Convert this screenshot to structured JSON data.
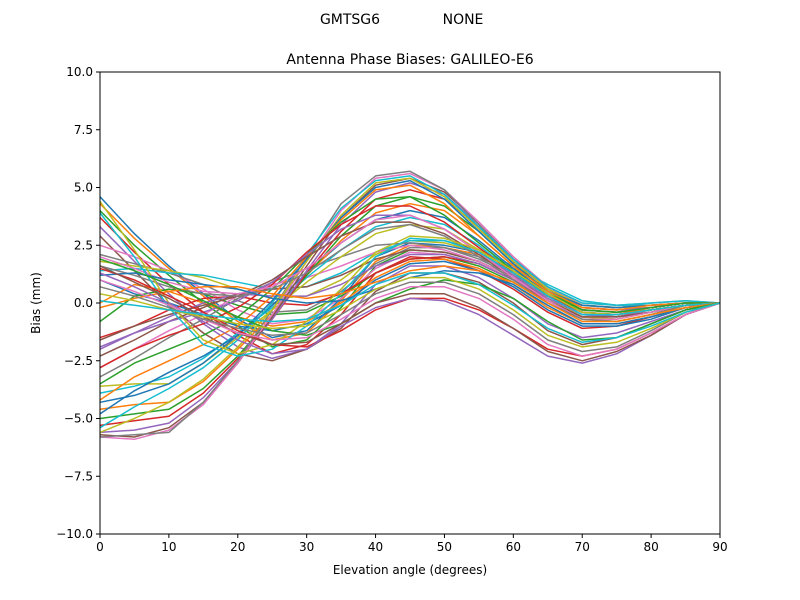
{
  "figure": {
    "suptitle_left": "GMTSG6",
    "suptitle_right": "NONE"
  },
  "chart_data": {
    "type": "line",
    "title": "Antenna Phase Biases: GALILEO-E6",
    "xlabel": "Elevation angle (degrees)",
    "ylabel": "Bias (mm)",
    "xlim": [
      0,
      90
    ],
    "ylim": [
      -10,
      10
    ],
    "x_ticks": [
      "0",
      "10",
      "20",
      "30",
      "40",
      "50",
      "60",
      "70",
      "80",
      "90"
    ],
    "y_ticks": [
      "−10.0",
      "−7.5",
      "−5.0",
      "−2.5",
      "0.0",
      "2.5",
      "5.0",
      "7.5",
      "10.0"
    ],
    "grid": false,
    "legend": "none",
    "x": [
      0,
      5,
      10,
      15,
      20,
      25,
      30,
      35,
      40,
      45,
      50,
      55,
      60,
      65,
      70,
      75,
      80,
      85,
      90
    ],
    "series": [
      {
        "values": [
          4.6,
          3.0,
          1.6,
          0.4,
          -0.7,
          -1.5,
          -1.2,
          0.2,
          2.0,
          2.6,
          2.5,
          2.2,
          1.5,
          0.6,
          -0.1,
          -0.2,
          -0.1,
          0.0,
          0.0
        ]
      },
      {
        "values": [
          4.3,
          2.8,
          1.5,
          0.3,
          -0.8,
          -1.6,
          -1.3,
          0.1,
          1.8,
          2.5,
          2.4,
          2.1,
          1.4,
          0.5,
          -0.2,
          -0.3,
          -0.2,
          0.0,
          0.0
        ]
      },
      {
        "values": [
          4.0,
          2.5,
          1.2,
          0.0,
          -1.0,
          -1.9,
          -1.6,
          -0.2,
          1.6,
          2.3,
          2.2,
          1.8,
          1.1,
          0.2,
          -0.5,
          -0.5,
          -0.3,
          -0.1,
          0.0
        ]
      },
      {
        "values": [
          3.7,
          2.2,
          0.8,
          -0.4,
          -1.4,
          -2.2,
          -1.8,
          -0.5,
          1.3,
          2.0,
          1.9,
          1.4,
          0.6,
          -0.4,
          -1.1,
          -1.0,
          -0.6,
          -0.2,
          0.0
        ]
      },
      {
        "values": [
          3.3,
          1.8,
          0.4,
          -0.9,
          -1.9,
          -2.4,
          -2.0,
          -0.9,
          0.8,
          1.6,
          1.6,
          1.1,
          0.2,
          -0.9,
          -1.5,
          -1.3,
          -0.8,
          -0.3,
          0.0
        ]
      },
      {
        "values": [
          2.9,
          1.4,
          -0.1,
          -1.3,
          -2.2,
          -2.5,
          -2.0,
          -1.1,
          0.5,
          1.3,
          1.3,
          0.9,
          0.0,
          -1.2,
          -1.8,
          -1.5,
          -0.9,
          -0.3,
          0.0
        ]
      },
      {
        "values": [
          2.5,
          2.0,
          1.4,
          0.6,
          -0.3,
          -0.9,
          -0.7,
          0.2,
          1.5,
          2.2,
          2.1,
          1.7,
          1.0,
          0.1,
          -0.6,
          -0.6,
          -0.4,
          -0.1,
          0.0
        ]
      },
      {
        "values": [
          2.1,
          1.7,
          1.3,
          0.8,
          0.1,
          -0.4,
          -0.3,
          0.5,
          1.7,
          2.4,
          2.4,
          2.0,
          1.3,
          0.4,
          -0.3,
          -0.4,
          -0.3,
          -0.1,
          0.0
        ]
      },
      {
        "values": [
          1.8,
          1.6,
          1.4,
          1.1,
          0.6,
          0.2,
          0.3,
          1.0,
          2.1,
          2.7,
          2.6,
          2.2,
          1.5,
          0.6,
          -0.1,
          -0.2,
          -0.1,
          0.0,
          0.0
        ]
      },
      {
        "values": [
          1.4,
          1.5,
          1.3,
          1.2,
          0.9,
          0.6,
          0.7,
          1.3,
          2.2,
          2.7,
          2.7,
          2.3,
          1.6,
          0.8,
          0.1,
          -0.1,
          -0.1,
          0.0,
          0.0
        ]
      },
      {
        "values": [
          1.0,
          0.4,
          0.0,
          -0.5,
          -1.0,
          -1.2,
          -0.9,
          -0.1,
          1.0,
          1.7,
          1.8,
          1.4,
          0.7,
          -0.3,
          -1.0,
          -1.0,
          -0.7,
          -0.2,
          0.0
        ]
      },
      {
        "values": [
          0.0,
          0.8,
          0.5,
          0.0,
          -0.6,
          -1.0,
          -0.8,
          0.0,
          1.1,
          1.8,
          1.9,
          1.5,
          0.8,
          -0.2,
          -0.9,
          -0.9,
          -0.6,
          -0.2,
          0.0
        ]
      },
      {
        "values": [
          -0.8,
          0.3,
          0.6,
          0.4,
          -0.1,
          -0.5,
          -0.4,
          0.3,
          1.3,
          1.9,
          2.0,
          1.6,
          0.9,
          0.0,
          -0.7,
          -0.8,
          -0.5,
          -0.1,
          0.0
        ]
      },
      {
        "values": [
          -1.5,
          -1.0,
          -0.3,
          0.2,
          0.3,
          0.0,
          -0.1,
          0.4,
          1.3,
          1.9,
          2.0,
          1.7,
          1.0,
          0.1,
          -0.6,
          -0.7,
          -0.4,
          -0.1,
          0.0
        ]
      },
      {
        "values": [
          -1.9,
          -1.3,
          -0.6,
          0.0,
          0.4,
          0.3,
          0.3,
          0.8,
          1.6,
          2.1,
          2.1,
          1.7,
          1.0,
          0.2,
          -0.5,
          -0.6,
          -0.4,
          -0.1,
          0.0
        ]
      },
      {
        "values": [
          -2.3,
          -1.6,
          -0.8,
          -0.2,
          0.4,
          0.6,
          0.7,
          1.2,
          1.9,
          2.3,
          2.2,
          1.8,
          1.1,
          0.3,
          -0.4,
          -0.5,
          -0.3,
          -0.1,
          0.0
        ]
      },
      {
        "values": [
          -2.8,
          -2.0,
          -1.2,
          -0.5,
          0.3,
          0.8,
          1.1,
          1.6,
          2.2,
          2.5,
          2.3,
          1.8,
          1.1,
          0.3,
          -0.4,
          -0.5,
          -0.3,
          -0.1,
          0.0
        ]
      },
      {
        "values": [
          -3.2,
          -2.4,
          -1.5,
          -0.7,
          0.2,
          0.9,
          1.5,
          2.0,
          2.5,
          2.6,
          2.4,
          1.9,
          1.2,
          0.4,
          -0.3,
          -0.4,
          -0.3,
          -0.1,
          0.0
        ]
      },
      {
        "values": [
          -3.6,
          -3.5,
          -3.5,
          -2.6,
          -1.5,
          -0.3,
          0.9,
          2.0,
          3.0,
          3.4,
          3.2,
          2.3,
          1.2,
          0.2,
          -0.6,
          -0.7,
          -0.4,
          -0.1,
          0.0
        ]
      },
      {
        "values": [
          -3.9,
          -3.6,
          -3.2,
          -2.4,
          -1.3,
          -0.2,
          1.1,
          2.3,
          3.3,
          3.7,
          3.4,
          2.5,
          1.3,
          0.3,
          -0.5,
          -0.6,
          -0.4,
          -0.1,
          0.0
        ]
      },
      {
        "values": [
          -4.3,
          -4.0,
          -3.5,
          -2.6,
          -1.4,
          -0.1,
          1.3,
          2.6,
          3.6,
          4.0,
          3.7,
          2.7,
          1.5,
          0.4,
          -0.4,
          -0.5,
          -0.3,
          -0.1,
          0.0
        ]
      },
      {
        "values": [
          -4.6,
          -4.4,
          -4.3,
          -3.4,
          -2.0,
          -0.5,
          1.2,
          2.7,
          3.9,
          4.3,
          4.0,
          2.9,
          1.6,
          0.5,
          -0.3,
          -0.4,
          -0.3,
          -0.1,
          0.0
        ]
      },
      {
        "values": [
          -5.0,
          -4.8,
          -4.6,
          -3.7,
          -2.3,
          -0.6,
          1.2,
          2.9,
          4.2,
          4.6,
          4.2,
          3.1,
          1.7,
          0.5,
          -0.3,
          -0.4,
          -0.2,
          0.0,
          0.0
        ]
      },
      {
        "values": [
          -5.3,
          -5.1,
          -4.9,
          -3.9,
          -2.4,
          -0.7,
          1.3,
          3.1,
          4.5,
          4.9,
          4.5,
          3.3,
          1.8,
          0.6,
          -0.2,
          -0.3,
          -0.2,
          0.0,
          0.0
        ]
      },
      {
        "values": [
          -5.6,
          -5.5,
          -5.2,
          -4.1,
          -2.5,
          -0.7,
          1.4,
          3.4,
          4.8,
          5.2,
          4.7,
          3.4,
          1.9,
          0.6,
          -0.2,
          -0.3,
          -0.2,
          0.0,
          0.0
        ]
      },
      {
        "values": [
          -5.7,
          -5.8,
          -5.4,
          -4.3,
          -2.6,
          -0.6,
          1.6,
          3.7,
          5.1,
          5.4,
          4.8,
          3.5,
          2.0,
          0.7,
          -0.1,
          -0.2,
          -0.1,
          0.0,
          0.0
        ]
      },
      {
        "values": [
          -5.8,
          -5.9,
          -5.5,
          -4.4,
          -2.6,
          -0.5,
          1.8,
          4.0,
          5.4,
          5.6,
          4.9,
          3.5,
          2.0,
          0.7,
          -0.1,
          -0.2,
          -0.1,
          0.0,
          0.0
        ]
      },
      {
        "values": [
          -5.8,
          -5.7,
          -5.6,
          -4.3,
          -2.5,
          -0.3,
          2.0,
          4.3,
          5.5,
          5.7,
          4.9,
          3.4,
          1.9,
          0.7,
          0.0,
          -0.1,
          0.0,
          0.1,
          0.0
        ]
      },
      {
        "values": [
          -5.6,
          -5.0,
          -4.3,
          -3.3,
          -1.9,
          -0.3,
          1.8,
          3.8,
          5.2,
          5.4,
          4.6,
          3.2,
          1.8,
          0.6,
          -0.1,
          -0.2,
          -0.1,
          0.0,
          0.0
        ]
      },
      {
        "values": [
          -5.4,
          -4.5,
          -3.7,
          -2.8,
          -1.6,
          0.0,
          2.1,
          4.1,
          5.3,
          5.5,
          4.7,
          3.3,
          1.9,
          0.7,
          0.0,
          -0.1,
          0.0,
          0.1,
          0.0
        ]
      },
      {
        "values": [
          -4.8,
          -3.8,
          -3.0,
          -2.3,
          -1.4,
          0.1,
          1.9,
          3.7,
          5.0,
          5.3,
          4.5,
          3.1,
          1.7,
          0.5,
          -0.1,
          -0.2,
          -0.1,
          0.0,
          0.0
        ]
      },
      {
        "values": [
          -4.2,
          -3.2,
          -2.5,
          -1.8,
          -1.0,
          0.3,
          2.0,
          3.6,
          4.9,
          5.1,
          4.3,
          2.9,
          1.6,
          0.5,
          -0.2,
          -0.3,
          -0.1,
          0.0,
          0.0
        ]
      },
      {
        "values": [
          -3.5,
          -2.6,
          -2.0,
          -1.4,
          -0.6,
          0.6,
          2.1,
          3.5,
          4.5,
          4.6,
          3.8,
          2.6,
          1.4,
          0.4,
          -0.3,
          -0.4,
          -0.2,
          0.0,
          0.0
        ]
      },
      {
        "values": [
          -2.8,
          -2.0,
          -1.4,
          -0.9,
          -0.2,
          0.8,
          2.2,
          3.4,
          4.2,
          4.2,
          3.5,
          2.4,
          1.3,
          0.3,
          -0.4,
          -0.5,
          -0.3,
          -0.1,
          0.0
        ]
      },
      {
        "values": [
          -2.0,
          -1.3,
          -0.8,
          -0.4,
          0.1,
          0.9,
          2.1,
          3.2,
          3.8,
          3.8,
          3.2,
          2.2,
          1.2,
          0.2,
          -0.5,
          -0.6,
          -0.3,
          -0.1,
          0.0
        ]
      },
      {
        "values": [
          -1.6,
          -1.0,
          -0.5,
          -0.1,
          0.3,
          1.0,
          2.0,
          2.9,
          3.5,
          3.5,
          3.0,
          2.1,
          1.1,
          0.1,
          -0.6,
          -0.6,
          -0.4,
          -0.1,
          0.0
        ]
      },
      {
        "values": [
          2.0,
          1.5,
          0.9,
          0.5,
          0.4,
          0.7,
          1.5,
          2.6,
          3.6,
          3.8,
          3.2,
          2.2,
          1.1,
          0.1,
          -0.7,
          -0.7,
          -0.4,
          -0.1,
          0.0
        ]
      },
      {
        "values": [
          1.6,
          1.2,
          0.7,
          0.4,
          0.3,
          0.6,
          1.3,
          2.3,
          3.2,
          3.4,
          2.9,
          2.0,
          1.0,
          0.0,
          -0.7,
          -0.8,
          -0.5,
          -0.1,
          0.0
        ]
      },
      {
        "values": [
          4.4,
          2.3,
          0.0,
          -1.6,
          -2.2,
          -1.8,
          -0.8,
          0.6,
          2.2,
          2.9,
          2.8,
          2.3,
          1.4,
          0.4,
          -0.4,
          -0.5,
          -0.3,
          -0.1,
          0.0
        ]
      },
      {
        "values": [
          3.9,
          2.0,
          -0.2,
          -1.8,
          -2.3,
          -2.0,
          -1.0,
          0.4,
          2.0,
          2.8,
          2.7,
          2.2,
          1.3,
          0.3,
          -0.5,
          -0.5,
          -0.3,
          -0.1,
          0.0
        ]
      },
      {
        "values": [
          1.2,
          1.3,
          1.0,
          0.8,
          0.6,
          0.2,
          0.0,
          0.1,
          0.6,
          1.1,
          1.4,
          1.3,
          0.8,
          -0.1,
          -0.9,
          -0.9,
          -0.6,
          -0.2,
          0.0
        ]
      },
      {
        "values": [
          -0.2,
          0.2,
          0.5,
          0.7,
          0.7,
          0.4,
          0.2,
          0.4,
          0.9,
          1.4,
          1.6,
          1.4,
          0.9,
          0.0,
          -0.8,
          -0.8,
          -0.5,
          -0.2,
          0.0
        ]
      },
      {
        "values": [
          1.9,
          1.4,
          0.8,
          0.1,
          -0.6,
          -1.2,
          -1.4,
          -0.9,
          0.0,
          0.6,
          1.0,
          0.8,
          0.2,
          -0.8,
          -1.6,
          -1.5,
          -0.9,
          -0.3,
          0.0
        ]
      },
      {
        "values": [
          1.5,
          1.0,
          0.3,
          -0.4,
          -1.2,
          -1.8,
          -1.9,
          -1.2,
          -0.3,
          0.2,
          0.2,
          -0.3,
          -1.1,
          -2.0,
          -2.3,
          -2.0,
          -1.3,
          -0.5,
          0.0
        ]
      },
      {
        "values": [
          1.3,
          0.7,
          0.0,
          -0.8,
          -1.6,
          -2.2,
          -2.0,
          -1.0,
          -0.2,
          0.2,
          0.1,
          -0.5,
          -1.4,
          -2.3,
          -2.6,
          -2.2,
          -1.4,
          -0.5,
          0.0
        ]
      },
      {
        "values": [
          1.6,
          0.9,
          0.2,
          -0.6,
          -1.3,
          -1.8,
          -1.7,
          -0.9,
          0.0,
          0.4,
          0.4,
          -0.2,
          -1.1,
          -2.1,
          -2.5,
          -2.1,
          -1.4,
          -0.5,
          0.0
        ]
      },
      {
        "values": [
          1.0,
          0.5,
          -0.1,
          -0.7,
          -1.3,
          -1.6,
          -1.5,
          -0.7,
          0.2,
          0.7,
          0.7,
          0.2,
          -0.7,
          -1.8,
          -2.3,
          -2.0,
          -1.3,
          -0.5,
          0.0
        ]
      },
      {
        "values": [
          0.7,
          0.3,
          -0.2,
          -0.7,
          -1.1,
          -1.4,
          -1.3,
          -0.5,
          0.4,
          0.9,
          0.9,
          0.4,
          -0.5,
          -1.6,
          -2.1,
          -1.9,
          -1.2,
          -0.4,
          0.0
        ]
      },
      {
        "values": [
          0.4,
          0.1,
          -0.3,
          -0.6,
          -0.9,
          -1.1,
          -1.0,
          -0.3,
          0.6,
          1.1,
          1.1,
          0.6,
          -0.3,
          -1.4,
          -1.9,
          -1.7,
          -1.1,
          -0.4,
          0.0
        ]
      },
      {
        "values": [
          0.1,
          -0.1,
          -0.3,
          -0.5,
          -0.7,
          -0.8,
          -0.7,
          -0.1,
          0.8,
          1.3,
          1.3,
          0.8,
          -0.1,
          -1.1,
          -1.7,
          -1.5,
          -1.0,
          -0.4,
          0.0
        ]
      }
    ]
  }
}
